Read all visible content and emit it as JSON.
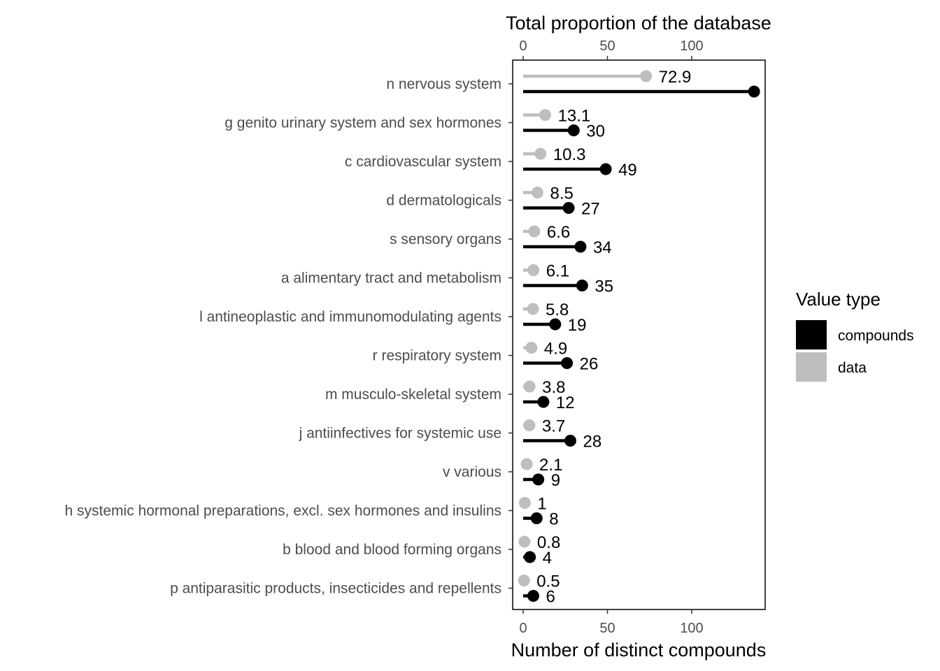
{
  "chart_data": {
    "type": "bar",
    "subtype": "lollipop",
    "top_axis_title": "Total proportion of the database",
    "bottom_axis_title": "Number of distinct compounds",
    "xlim": [
      -6,
      143
    ],
    "x_ticks": [
      0,
      50,
      100
    ],
    "categories": [
      "n nervous system",
      "g genito urinary system and sex hormones",
      "c cardiovascular system",
      "d dermatologicals",
      "s sensory organs",
      "a alimentary tract and metabolism",
      "l antineoplastic and immunomodulating agents",
      "r respiratory system",
      "m musculo-skeletal system",
      "j antiinfectives for systemic use",
      "v various",
      "h systemic hormonal preparations, excl. sex hormones and insulins",
      "b blood and blood forming organs",
      "p antiparasitic products, insecticides and repellents"
    ],
    "series": [
      {
        "name": "data",
        "color": "#bebebe",
        "values": [
          72.9,
          13.1,
          10.3,
          8.5,
          6.6,
          6.1,
          5.8,
          4.9,
          3.8,
          3.7,
          2.1,
          1,
          0.8,
          0.5
        ],
        "labels": [
          "72.9",
          "13.1",
          "10.3",
          "8.5",
          "6.6",
          "6.1",
          "5.8",
          "4.9",
          "3.8",
          "3.7",
          "2.1",
          "1",
          "0.8",
          "0.5"
        ]
      },
      {
        "name": "compounds",
        "color": "#000000",
        "values": [
          137,
          30,
          49,
          27,
          34,
          35,
          19,
          26,
          12,
          28,
          9,
          8,
          4,
          6
        ],
        "labels": [
          "",
          "30",
          "49",
          "27",
          "34",
          "35",
          "19",
          "26",
          "12",
          "28",
          "9",
          "8",
          "4",
          "6"
        ]
      }
    ],
    "legend": {
      "title": "Value type",
      "position": "right",
      "entries": [
        {
          "label": "compounds",
          "color": "#000000"
        },
        {
          "label": "data",
          "color": "#bebebe"
        }
      ]
    },
    "grid": false
  }
}
